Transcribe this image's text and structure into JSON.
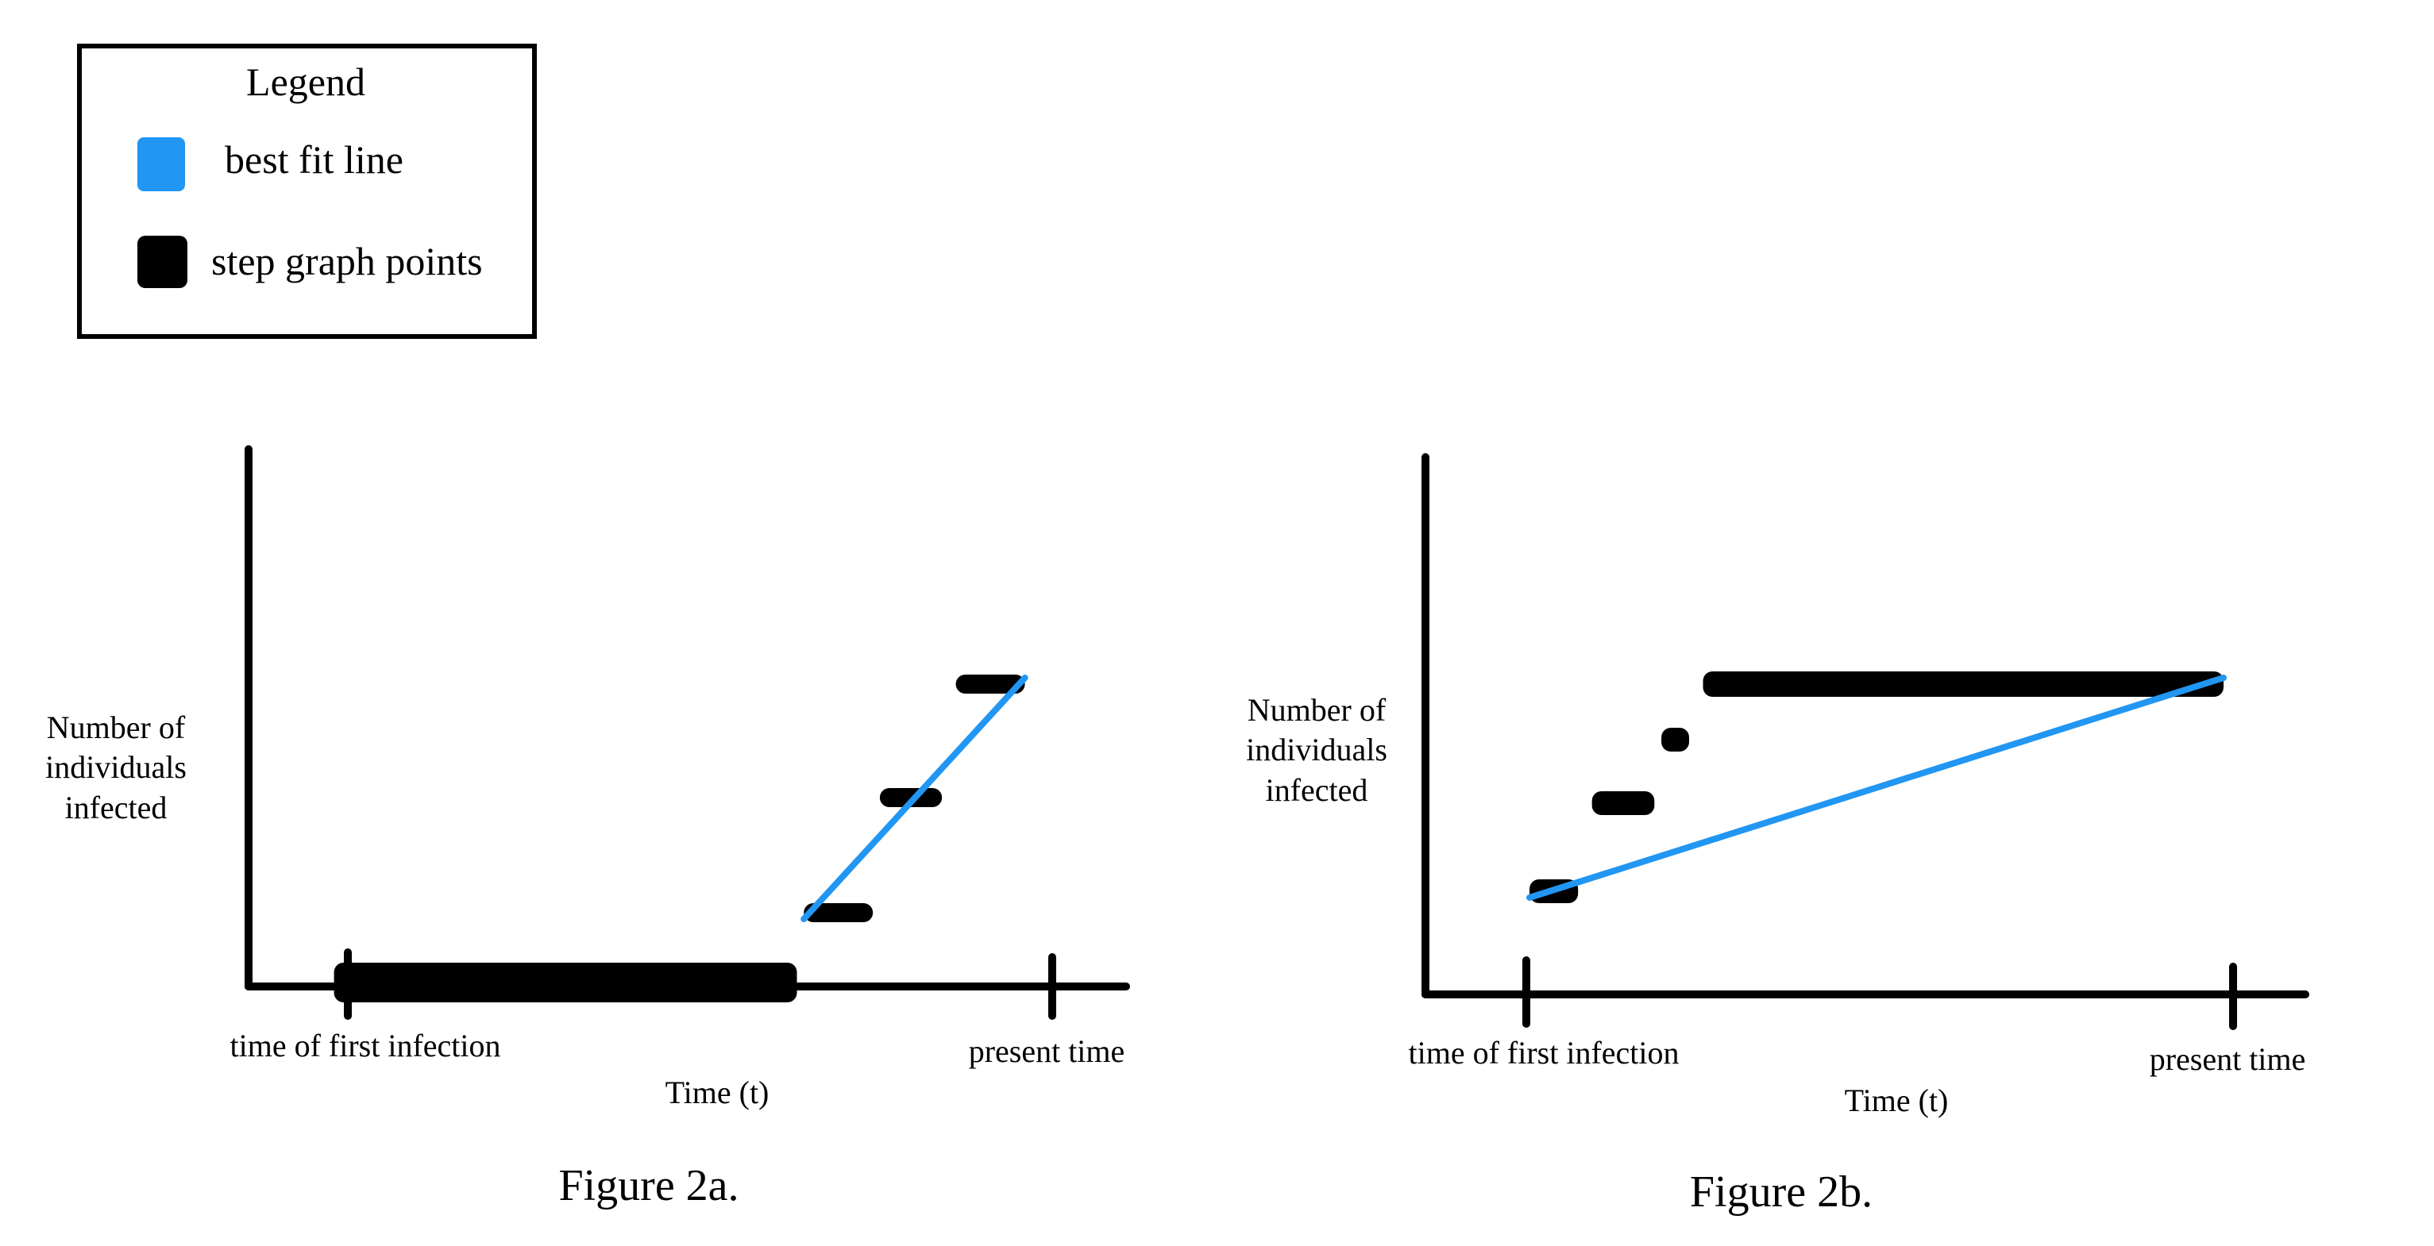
{
  "legend": {
    "title": "Legend",
    "items": [
      {
        "label": "best fit line",
        "color": "#2196f3",
        "kind": "line"
      },
      {
        "label": "step graph points",
        "color": "#000000",
        "kind": "step"
      }
    ]
  },
  "figures": [
    {
      "caption": "Figure 2a.",
      "ylabel": [
        "Number of",
        "individuals",
        "infected"
      ],
      "xlabel": "Time (t)",
      "ticks": [
        {
          "label": "time of first infection",
          "t": 0
        },
        {
          "label": "present time",
          "t": 1
        }
      ],
      "steps": [
        {
          "t0": -0.02,
          "t1": 0.65,
          "level": 0
        },
        {
          "t0": 0.66,
          "t1": 0.76,
          "level": 1
        },
        {
          "t0": 0.77,
          "t1": 0.86,
          "level": 2
        },
        {
          "t0": 0.88,
          "t1": 0.98,
          "level": 3
        }
      ],
      "best_fit": {
        "from": {
          "t": 0.66,
          "level": 1
        },
        "to": {
          "t": 0.98,
          "level": 3
        }
      }
    },
    {
      "caption": "Figure 2b.",
      "ylabel": [
        "Number of",
        "individuals",
        "infected"
      ],
      "xlabel": "Time (t)",
      "ticks": [
        {
          "label": "time of first infection",
          "t": 0
        },
        {
          "label": "present time",
          "t": 1
        }
      ],
      "steps": [
        {
          "t0": 0.0,
          "t1": 0.07,
          "level": 1
        },
        {
          "t0": 0.09,
          "t1": 0.18,
          "level": 2
        },
        {
          "t0": 0.19,
          "t1": 0.23,
          "level": 3
        },
        {
          "t0": 0.25,
          "t1": 1.0,
          "level": 4
        }
      ],
      "best_fit": {
        "from": {
          "t": 0.0,
          "level": 1
        },
        "to": {
          "t": 1.0,
          "level": 4
        }
      }
    }
  ]
}
